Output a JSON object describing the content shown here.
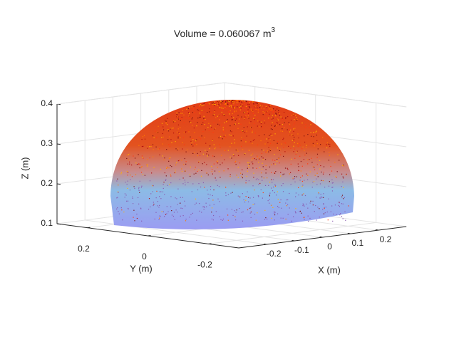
{
  "chart_data": {
    "type": "surface3d",
    "title": {
      "text": "Volume = 0.060067 m",
      "superscript": "3"
    },
    "xlabel": "X (m)",
    "ylabel": "Y (m)",
    "zlabel": "Z (m)",
    "xlim": [
      -0.3,
      0.3
    ],
    "ylim": [
      -0.3,
      0.3
    ],
    "zlim": [
      0.1,
      0.4
    ],
    "xticks": [
      -0.2,
      -0.1,
      0,
      0.1,
      0.2
    ],
    "yticks": [
      0.2,
      0,
      -0.2
    ],
    "zticks": [
      0.1,
      0.2,
      0.3,
      0.4
    ],
    "grid": true
  }
}
